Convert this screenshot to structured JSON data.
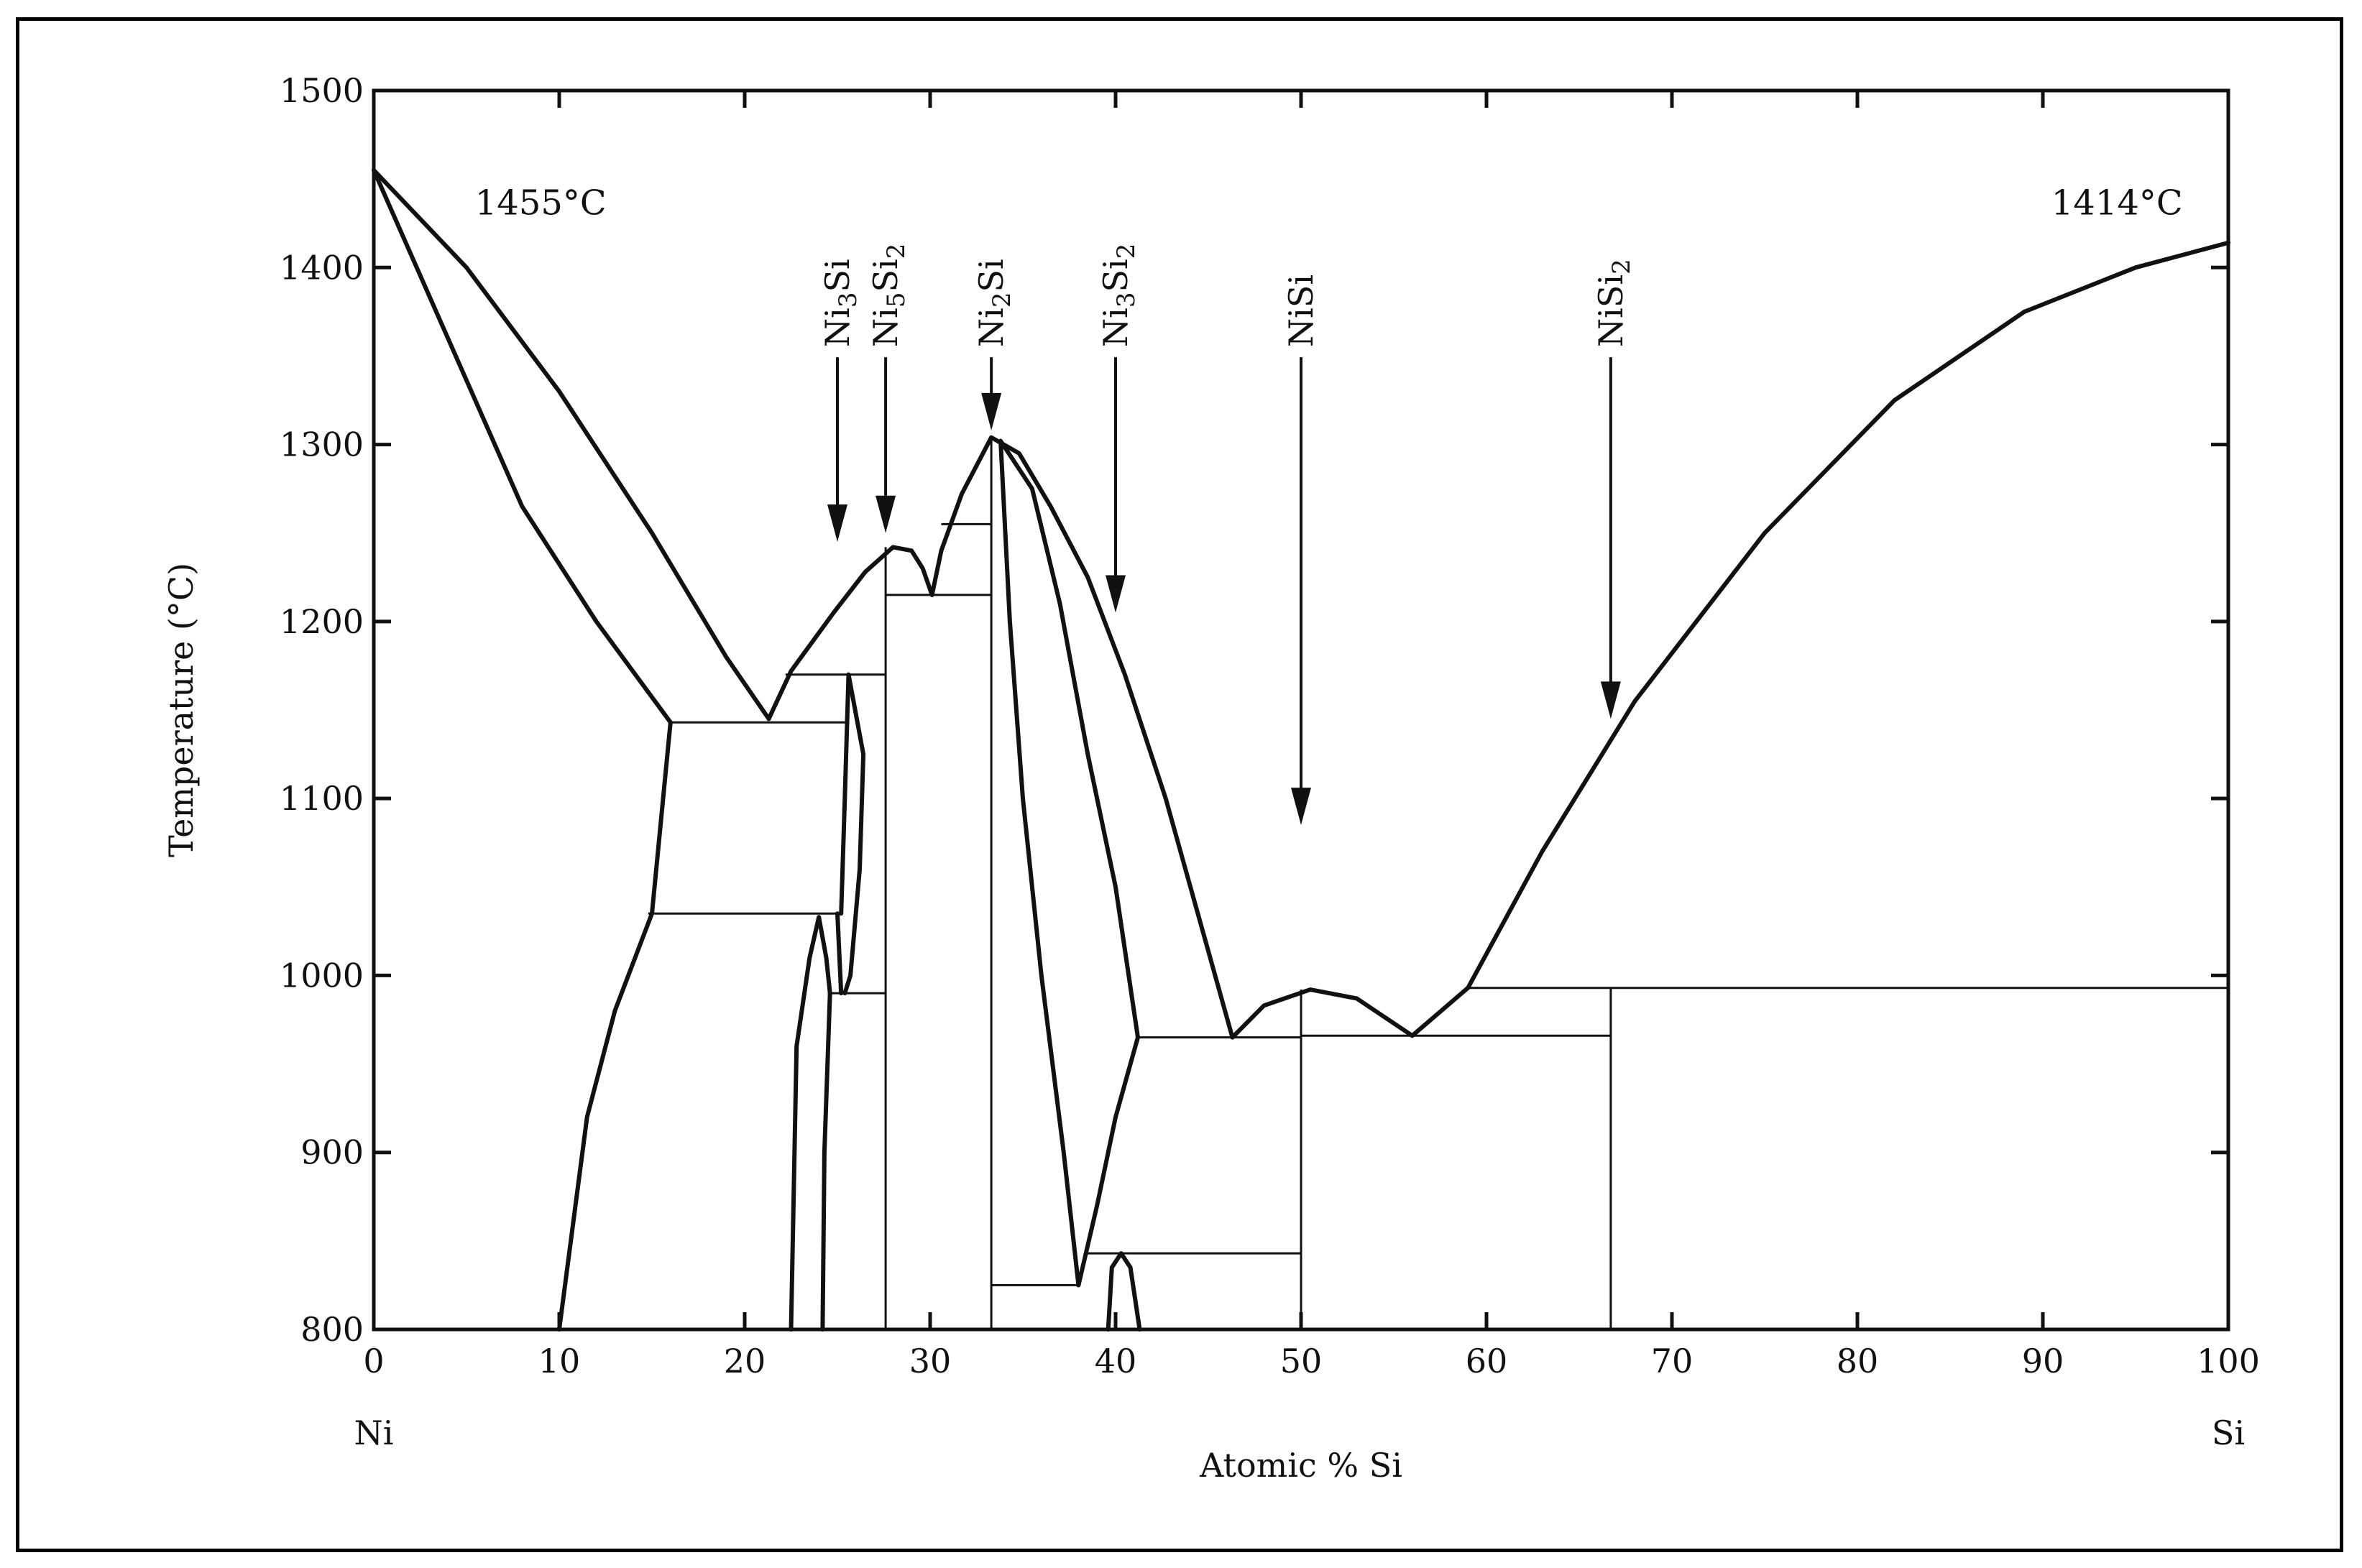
{
  "chart_data": {
    "type": "line",
    "xlabel": "Atomic % Si",
    "ylabel": "Temperature (°C)",
    "xlim": [
      0,
      100
    ],
    "ylim": [
      800,
      1500
    ],
    "x_ticks": [
      0,
      10,
      20,
      30,
      40,
      50,
      60,
      70,
      80,
      90,
      100
    ],
    "y_ticks": [
      800,
      900,
      1000,
      1100,
      1200,
      1300,
      1400,
      1500
    ],
    "x_ends": {
      "left": "Ni",
      "right": "Si"
    },
    "grid": false,
    "annotations": [
      {
        "text": "1455°C",
        "x": 9,
        "y": 1430
      },
      {
        "text": "1414°C",
        "x": 94,
        "y": 1430
      }
    ],
    "compounds": [
      {
        "base": "Ni",
        "sub1": "3",
        "mid": "Si",
        "sub2": "",
        "x": 25,
        "arrow_tip": 1245
      },
      {
        "base": "Ni",
        "sub1": "5",
        "mid": "Si",
        "sub2": "2",
        "x": 27.6,
        "arrow_tip": 1250
      },
      {
        "base": "Ni",
        "sub1": "2",
        "mid": "Si",
        "sub2": "",
        "x": 33.3,
        "arrow_tip": 1308
      },
      {
        "base": "Ni",
        "sub1": "3",
        "mid": "Si",
        "sub2": "2",
        "x": 40,
        "arrow_tip": 1205
      },
      {
        "base": "NiSi",
        "sub1": "",
        "mid": "",
        "sub2": "",
        "x": 50,
        "arrow_tip": 1085
      },
      {
        "base": "NiSi",
        "sub1": "2",
        "mid": "",
        "sub2": "",
        "x": 66.7,
        "arrow_tip": 1145
      }
    ],
    "series": [
      {
        "kind": "curve",
        "points": [
          [
            0,
            1455
          ],
          [
            5,
            1400
          ],
          [
            10,
            1330
          ],
          [
            15,
            1250
          ],
          [
            19,
            1180
          ],
          [
            21.3,
            1145
          ]
        ]
      },
      {
        "kind": "curve",
        "points": [
          [
            0,
            1455
          ],
          [
            4,
            1360
          ],
          [
            8,
            1265
          ],
          [
            12,
            1200
          ],
          [
            16,
            1143
          ]
        ]
      },
      {
        "kind": "curve",
        "points": [
          [
            16,
            1143
          ],
          [
            15,
            1035
          ],
          [
            13,
            980
          ],
          [
            11.5,
            920
          ],
          [
            10,
            800
          ]
        ]
      },
      {
        "kind": "curve",
        "points": [
          [
            21.3,
            1145
          ],
          [
            22.5,
            1172
          ],
          [
            24.8,
            1205
          ],
          [
            26.5,
            1228
          ],
          [
            28,
            1242
          ],
          [
            29,
            1240
          ],
          [
            29.6,
            1230
          ],
          [
            30.1,
            1215
          ]
        ]
      },
      {
        "kind": "curve",
        "points": [
          [
            30.1,
            1215
          ],
          [
            30.6,
            1240
          ],
          [
            31.7,
            1272
          ],
          [
            33.3,
            1304
          ],
          [
            34.8,
            1295
          ],
          [
            36.5,
            1265
          ],
          [
            38.5,
            1225
          ],
          [
            40.5,
            1170
          ],
          [
            42.7,
            1100
          ],
          [
            44.7,
            1025
          ],
          [
            46.3,
            965
          ]
        ]
      },
      {
        "kind": "curve",
        "points": [
          [
            25.6,
            1170
          ],
          [
            26.4,
            1125
          ],
          [
            26.2,
            1060
          ],
          [
            25.7,
            1000
          ],
          [
            25.4,
            990
          ]
        ]
      },
      {
        "kind": "curve",
        "points": [
          [
            25.6,
            1170
          ],
          [
            25.4,
            1100
          ],
          [
            25.2,
            1035
          ]
        ]
      },
      {
        "kind": "curve",
        "points": [
          [
            25.2,
            990
          ],
          [
            25,
            1035
          ]
        ]
      },
      {
        "kind": "curve",
        "points": [
          [
            22.5,
            800
          ],
          [
            22.8,
            960
          ],
          [
            23.5,
            1010
          ],
          [
            24,
            1033
          ],
          [
            24.4,
            1010
          ],
          [
            24.6,
            990
          ]
        ]
      },
      {
        "kind": "curve",
        "points": [
          [
            24.2,
            800
          ],
          [
            24.3,
            900
          ],
          [
            24.6,
            990
          ]
        ]
      },
      {
        "kind": "curve",
        "points": [
          [
            33.8,
            1302
          ],
          [
            35.5,
            1275
          ],
          [
            37,
            1210
          ],
          [
            38.5,
            1125
          ],
          [
            40,
            1050
          ],
          [
            41.2,
            965
          ]
        ]
      },
      {
        "kind": "curve",
        "points": [
          [
            33.8,
            1302
          ],
          [
            34.3,
            1200
          ],
          [
            35,
            1100
          ],
          [
            36,
            1000
          ],
          [
            37.2,
            900
          ],
          [
            38,
            825
          ]
        ]
      },
      {
        "kind": "curve",
        "points": [
          [
            38,
            825
          ],
          [
            39,
            870
          ],
          [
            40,
            920
          ],
          [
            41.2,
            965
          ]
        ]
      },
      {
        "kind": "curve",
        "points": [
          [
            39.6,
            800
          ],
          [
            39.8,
            835
          ],
          [
            40.3,
            843
          ],
          [
            40.8,
            835
          ],
          [
            41.3,
            800
          ]
        ]
      },
      {
        "kind": "curve",
        "points": [
          [
            46.3,
            965
          ],
          [
            48,
            983
          ],
          [
            50.5,
            992
          ],
          [
            53,
            987
          ],
          [
            56,
            966
          ]
        ]
      },
      {
        "kind": "curve",
        "points": [
          [
            56,
            966
          ],
          [
            59,
            993
          ]
        ]
      },
      {
        "kind": "curve",
        "points": [
          [
            59,
            993
          ],
          [
            63,
            1070
          ],
          [
            68,
            1155
          ],
          [
            75,
            1250
          ],
          [
            82,
            1325
          ],
          [
            89,
            1375
          ],
          [
            95,
            1400
          ],
          [
            100,
            1414
          ]
        ]
      },
      {
        "kind": "line",
        "points": [
          [
            16,
            1143
          ],
          [
            25.6,
            1143
          ]
        ]
      },
      {
        "kind": "line",
        "points": [
          [
            22.2,
            1170
          ],
          [
            27.6,
            1170
          ]
        ]
      },
      {
        "kind": "line",
        "points": [
          [
            14.8,
            1035
          ],
          [
            25.2,
            1035
          ]
        ]
      },
      {
        "kind": "line",
        "points": [
          [
            24.6,
            990
          ],
          [
            27.6,
            990
          ]
        ]
      },
      {
        "kind": "line",
        "points": [
          [
            27.6,
            1215
          ],
          [
            33.3,
            1215
          ]
        ]
      },
      {
        "kind": "line",
        "points": [
          [
            30.6,
            1255
          ],
          [
            33.3,
            1255
          ]
        ]
      },
      {
        "kind": "line",
        "points": [
          [
            33.3,
            825
          ],
          [
            38,
            825
          ]
        ]
      },
      {
        "kind": "line",
        "points": [
          [
            38.5,
            843
          ],
          [
            50,
            843
          ]
        ]
      },
      {
        "kind": "line",
        "points": [
          [
            41.2,
            965
          ],
          [
            50,
            965
          ]
        ]
      },
      {
        "kind": "line",
        "points": [
          [
            50,
            966
          ],
          [
            66.7,
            966
          ]
        ]
      },
      {
        "kind": "line",
        "points": [
          [
            59,
            993
          ],
          [
            100,
            993
          ]
        ]
      },
      {
        "kind": "line",
        "points": [
          [
            27.6,
            800
          ],
          [
            27.6,
            1242
          ]
        ]
      },
      {
        "kind": "line",
        "points": [
          [
            33.3,
            800
          ],
          [
            33.3,
            1304
          ]
        ]
      },
      {
        "kind": "line",
        "points": [
          [
            50,
            800
          ],
          [
            50,
            992
          ]
        ]
      },
      {
        "kind": "line",
        "points": [
          [
            66.7,
            800
          ],
          [
            66.7,
            993
          ]
        ]
      }
    ]
  }
}
